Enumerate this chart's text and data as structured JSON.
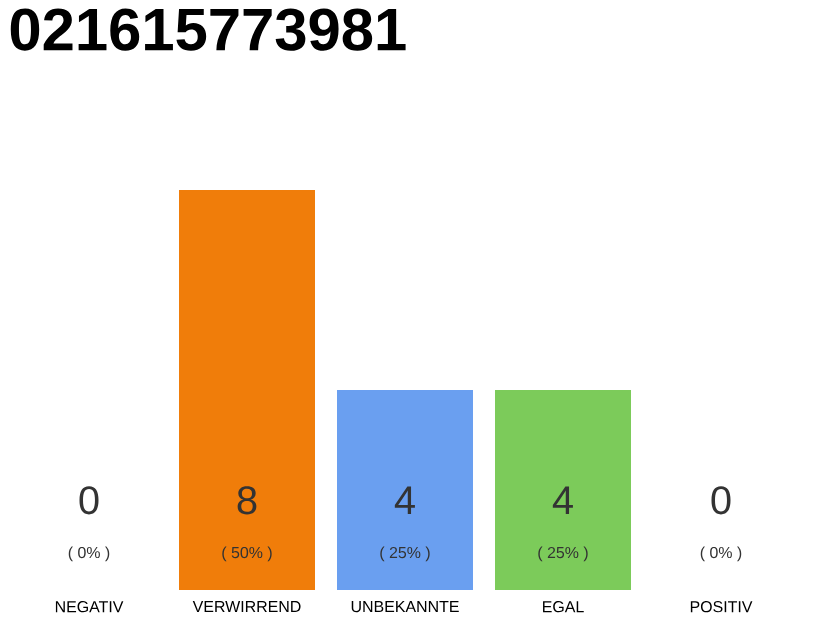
{
  "chart_data": {
    "type": "bar",
    "title": "021615773981",
    "categories": [
      "NEGATIV",
      "VERWIRREND",
      "UNBEKANNTE",
      "EGAL",
      "POSITIV"
    ],
    "values": [
      0,
      8,
      4,
      4,
      0
    ],
    "colors": [
      "#efefef",
      "#f07d0a",
      "#6a9ff0",
      "#7ccb5a",
      "#efefef"
    ],
    "value_labels": [
      "0",
      "8",
      "4",
      "4",
      "0"
    ],
    "annotations": [
      {
        "text": "( 0% )",
        "x": "NEGATIV",
        "y": 0
      },
      {
        "text": "( 50% )",
        "x": "VERWIRREND",
        "y": 0
      },
      {
        "text": "( 25% )",
        "x": "UNBEKANNTE",
        "y": 0
      },
      {
        "text": "( 25% )",
        "x": "EGAL",
        "y": 0
      },
      {
        "text": "( 0% )",
        "x": "POSITIV",
        "y": 0
      }
    ]
  }
}
